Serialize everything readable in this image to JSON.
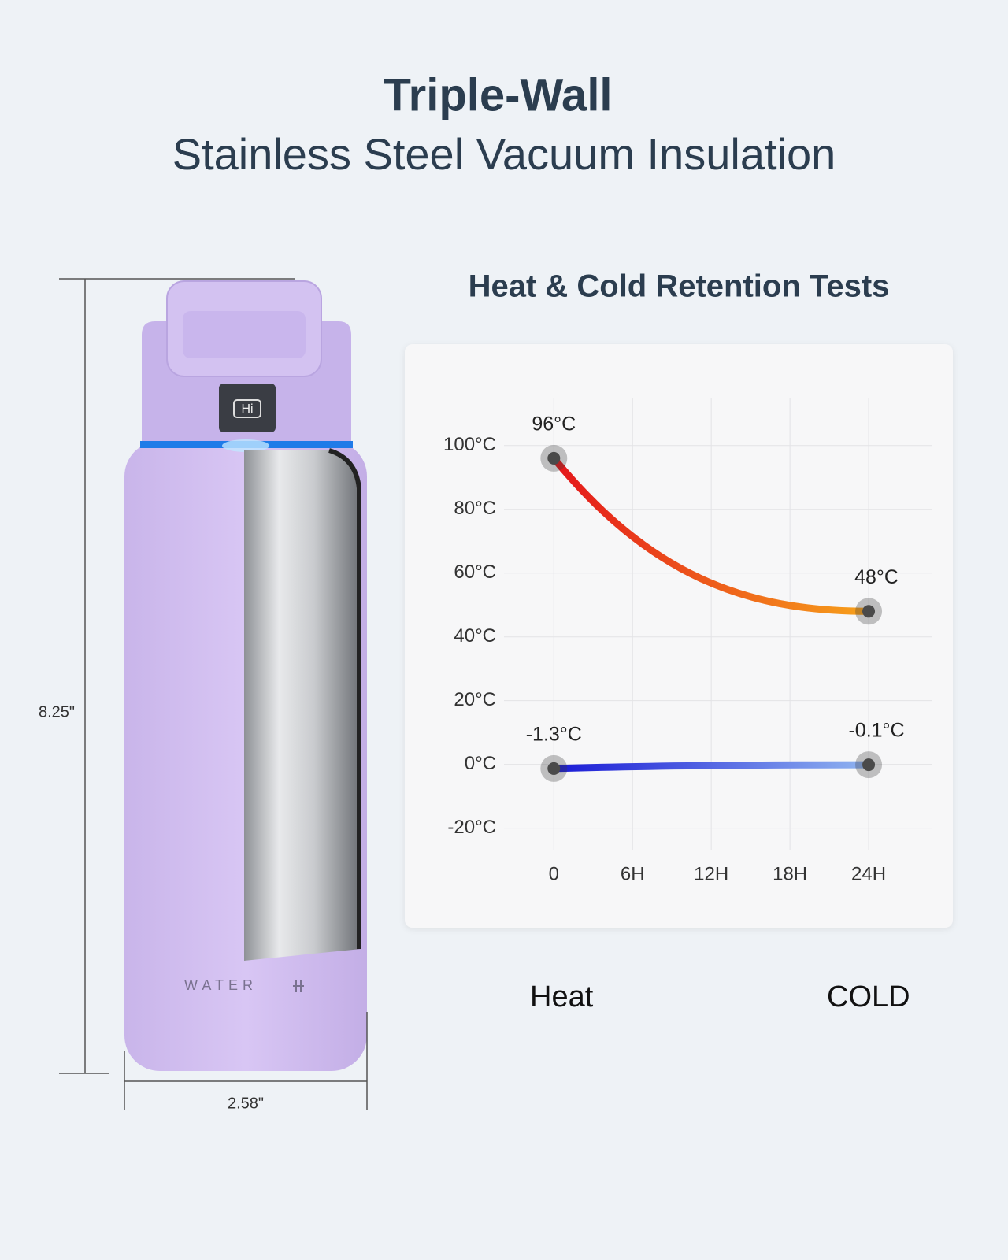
{
  "header": {
    "title": "Triple-Wall",
    "subtitle": "Stainless Steel Vacuum Insulation"
  },
  "bottle": {
    "button": "Hi",
    "brand": "WATER",
    "height": "8.25\"",
    "width": "2.58\""
  },
  "chart_data": {
    "type": "line",
    "title": "Heat & Cold Retention Tests",
    "x": [
      0,
      24
    ],
    "series": [
      {
        "name": "Heat",
        "color": [
          "#e4161b",
          "#f7a21b"
        ],
        "values": [
          96,
          48
        ],
        "value_labels": [
          "96°C",
          "48°C"
        ]
      },
      {
        "name": "COLD",
        "color": [
          "#1a1ad6",
          "#8fb3f0"
        ],
        "values": [
          -1.3,
          -0.1
        ],
        "value_labels": [
          "-1.3°C",
          "-0.1°C"
        ]
      }
    ],
    "xlim": [
      -3.8,
      28.8
    ],
    "xticks": [
      {
        "value": 0,
        "label": "0"
      },
      {
        "value": 6,
        "label": "6H"
      },
      {
        "value": 12,
        "label": "12H"
      },
      {
        "value": 18,
        "label": "18H"
      },
      {
        "value": 24,
        "label": "24H"
      }
    ],
    "ylim": [
      -27,
      115
    ],
    "yticks": [
      {
        "value": 100,
        "label": "100°C"
      },
      {
        "value": 80,
        "label": "80°C"
      },
      {
        "value": 60,
        "label": "60°C"
      },
      {
        "value": 40,
        "label": "40°C"
      },
      {
        "value": 20,
        "label": "20°C"
      },
      {
        "value": 0,
        "label": "0°C"
      },
      {
        "value": -20,
        "label": "-20°C"
      }
    ],
    "grid": true
  }
}
